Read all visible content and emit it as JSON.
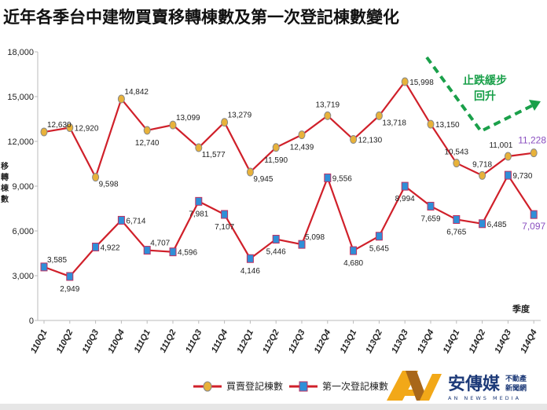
{
  "title": "近年各季台中建物買賣移轉棟數及第一次登記棟數變化",
  "chart_data": {
    "type": "line",
    "title": "近年各季台中建物買賣移轉棟數及第一次登記棟數變化",
    "ylabel": "移轉棟數",
    "xlabel": "季度",
    "ylim": [
      0,
      18000
    ],
    "yticks": [
      "0",
      "3,000",
      "6,000",
      "9,000",
      "12,000",
      "15,000",
      "18,000"
    ],
    "grid": false,
    "legend_position": "bottom",
    "categories": [
      "110Q1",
      "110Q2",
      "110Q3",
      "110Q4",
      "111Q1",
      "111Q2",
      "111Q3",
      "111Q4",
      "112Q1",
      "112Q2",
      "112Q3",
      "112Q4",
      "113Q1",
      "113Q2",
      "113Q3",
      "113Q4",
      "114Q1",
      "114Q2",
      "114Q3",
      "114Q4"
    ],
    "series": [
      {
        "name": "買賣登記棟數",
        "marker": "circle",
        "marker_color": "#e8b23a",
        "line_color": "#d0202a",
        "values": [
          12630,
          12920,
          9598,
          14842,
          12740,
          13099,
          11577,
          13279,
          9945,
          11590,
          12439,
          13719,
          12130,
          13718,
          15998,
          13150,
          10543,
          9718,
          11001,
          11228
        ],
        "labels": [
          "12,630",
          "12,920",
          "9,598",
          "14,842",
          "12,740",
          "13,099",
          "11,577",
          "13,279",
          "9,945",
          "11,590",
          "12,439",
          "13,719",
          "12,130",
          "13,718",
          "15,998",
          "13,150",
          "10,543",
          "9,718",
          "11,001",
          "11,228"
        ]
      },
      {
        "name": "第一次登記棟數",
        "marker": "square",
        "marker_color": "#2f8fd8",
        "line_color": "#d0202a",
        "values": [
          3585,
          2949,
          4922,
          6714,
          4707,
          4596,
          7981,
          7107,
          4146,
          5446,
          5098,
          9556,
          4680,
          5645,
          8994,
          7659,
          6765,
          6485,
          9730,
          7097
        ],
        "labels": [
          "3,585",
          "2,949",
          "4,922",
          "6,714",
          "4,707",
          "4,596",
          "7,981",
          "7,107",
          "4,146",
          "5,446",
          "5,098",
          "9,556",
          "4,680",
          "5,645",
          "8,994",
          "7,659",
          "6,765",
          "6,485",
          "9,730",
          "7,097"
        ]
      }
    ],
    "highlight_color": "#8a4fc0",
    "annotation": {
      "line1": "止跌緩步",
      "line2": "回升",
      "color": "#1aa04a"
    }
  },
  "logo": {
    "name": "安傳媒",
    "sub1": "不動產",
    "sub2": "新聞網",
    "en": "AN NEWS MEDIA"
  }
}
